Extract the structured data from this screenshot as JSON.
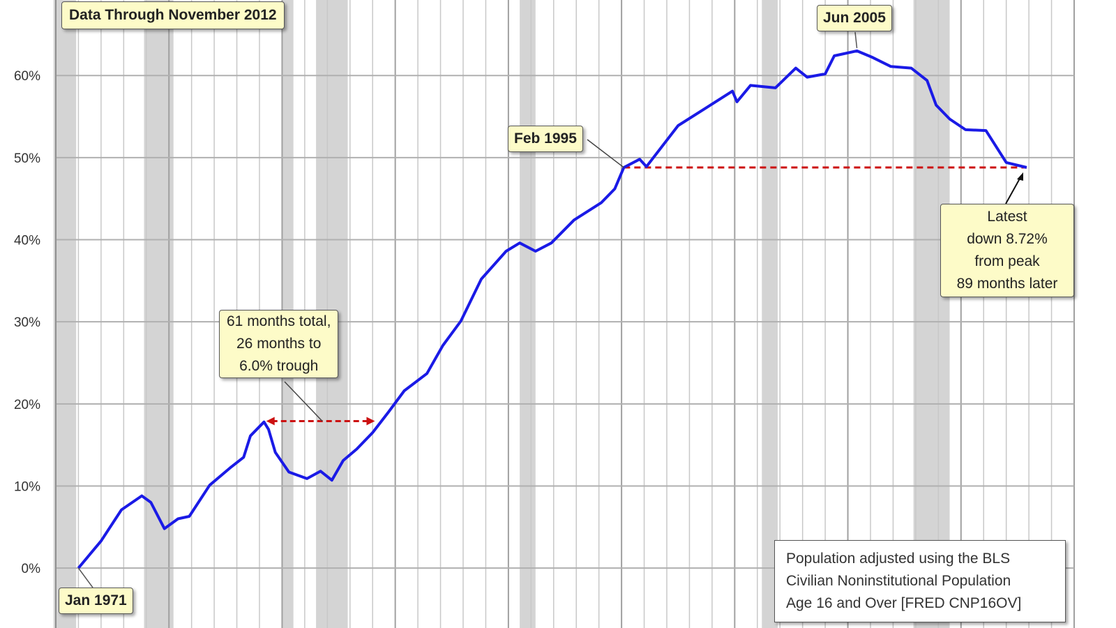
{
  "chart_data": {
    "type": "line",
    "title": "Data Through November 2012",
    "xlabel": "",
    "ylabel": "",
    "xlim": [
      1970,
      2015
    ],
    "ylim": [
      -7.3,
      69.2
    ],
    "grid": true,
    "yticks": [
      0,
      10,
      20,
      30,
      40,
      50,
      60
    ],
    "ytick_labels": [
      "0%",
      "10%",
      "20%",
      "30%",
      "40%",
      "50%",
      "60%"
    ],
    "line_color": "#1a1ae6",
    "recession_color": "#d4d4d4",
    "recessions": [
      [
        1969.9,
        1970.9
      ],
      [
        1973.9,
        1975.2
      ],
      [
        1980.0,
        1980.5
      ],
      [
        1981.5,
        1982.9
      ],
      [
        1990.5,
        1991.2
      ],
      [
        2001.2,
        2001.9
      ],
      [
        2007.9,
        2009.5
      ]
    ],
    "series": [
      {
        "x": [
          1971.0,
          1972.0,
          1972.9,
          1973.8,
          1974.2,
          1974.8,
          1975.4,
          1975.9,
          1976.8,
          1977.7,
          1978.3,
          1978.6,
          1979.2,
          1979.4,
          1979.7,
          1980.3,
          1981.1,
          1981.7,
          1982.2,
          1982.7,
          1983.3,
          1984.0,
          1984.7,
          1985.4,
          1986.4,
          1987.1,
          1987.9,
          1988.8,
          1989.9,
          1990.5,
          1991.2,
          1991.9,
          1992.9,
          1994.1,
          1994.7,
          1995.1,
          1995.8,
          1996.1,
          1997.5,
          1998.7,
          1999.9,
          2000.1,
          2000.7,
          2001.8,
          2002.7,
          2003.2,
          2004.0,
          2004.4,
          2005.4,
          2006.1,
          2006.9,
          2007.8,
          2008.5,
          2008.9,
          2009.5,
          2010.2,
          2011.1,
          2012.0,
          2012.9
        ],
        "y": [
          0,
          3.3,
          7.1,
          8.8,
          8.0,
          4.8,
          6.0,
          6.3,
          10.1,
          12.2,
          13.5,
          16.1,
          17.8,
          16.9,
          14.1,
          11.7,
          10.9,
          11.8,
          10.7,
          13.1,
          14.5,
          16.5,
          19.0,
          21.6,
          23.7,
          27.1,
          30.1,
          35.2,
          38.6,
          39.6,
          38.6,
          39.6,
          42.4,
          44.5,
          46.2,
          48.8,
          49.8,
          48.9,
          53.9,
          56.0,
          58.1,
          56.8,
          58.8,
          58.5,
          60.9,
          59.8,
          60.2,
          62.4,
          63.0,
          62.2,
          61.1,
          60.9,
          59.4,
          56.4,
          54.7,
          53.4,
          53.3,
          49.4,
          48.8
        ]
      }
    ],
    "reference_line": {
      "y": 48.8,
      "x": [
        1995.1,
        2012.9
      ],
      "color": "#cc1111"
    },
    "range_arrow": {
      "y": 17.9,
      "x": [
        1979.3,
        1984.1
      ],
      "color": "#cc1111"
    },
    "annotations": {
      "start": "Jan 1971",
      "feb1995": "Feb 1995",
      "peak": "Jun 2005",
      "trough": [
        "61 months total,",
        "26 months to",
        "6.0% trough"
      ],
      "latest": [
        "Latest",
        "down 8.72%",
        "from peak",
        "89 months later"
      ],
      "note": [
        "Population adjusted using the BLS",
        "Civilian Noninstitutional Population",
        "Age 16 and Over  [FRED CNP16OV]"
      ]
    }
  }
}
